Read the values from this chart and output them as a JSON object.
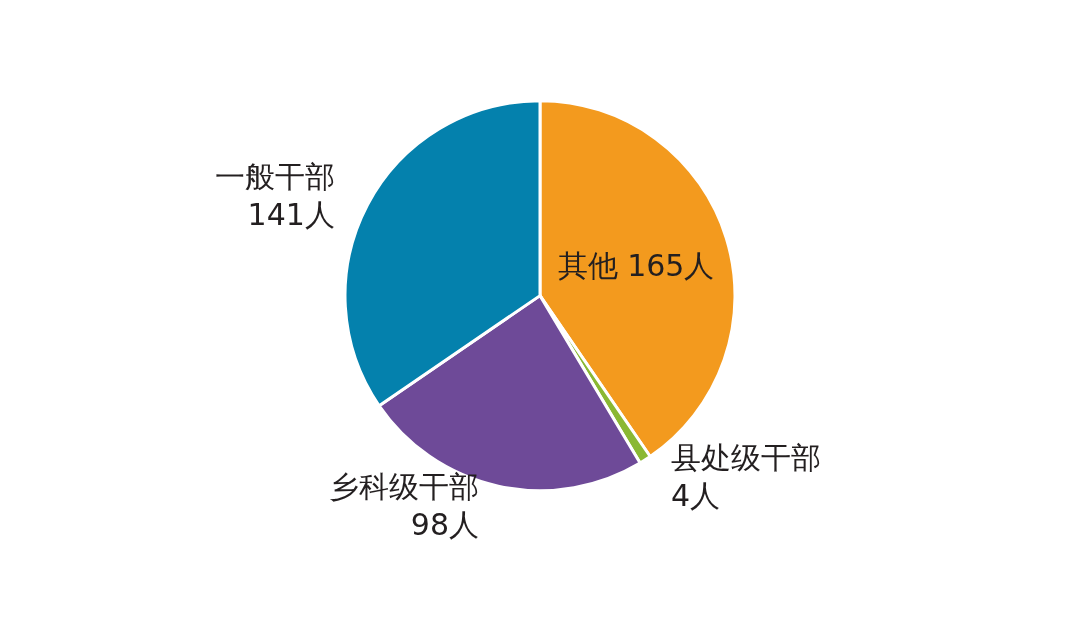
{
  "chart_data": {
    "type": "pie",
    "categories": [
      "其他",
      "县处级干部",
      "乡科级干部",
      "一般干部"
    ],
    "values": [
      165,
      4,
      98,
      141
    ],
    "value_labels": [
      "165人",
      "4人",
      "98人",
      "141人"
    ],
    "colors": [
      "#f39a1e",
      "#8ab833",
      "#6e4a98",
      "#0481ad"
    ]
  }
}
